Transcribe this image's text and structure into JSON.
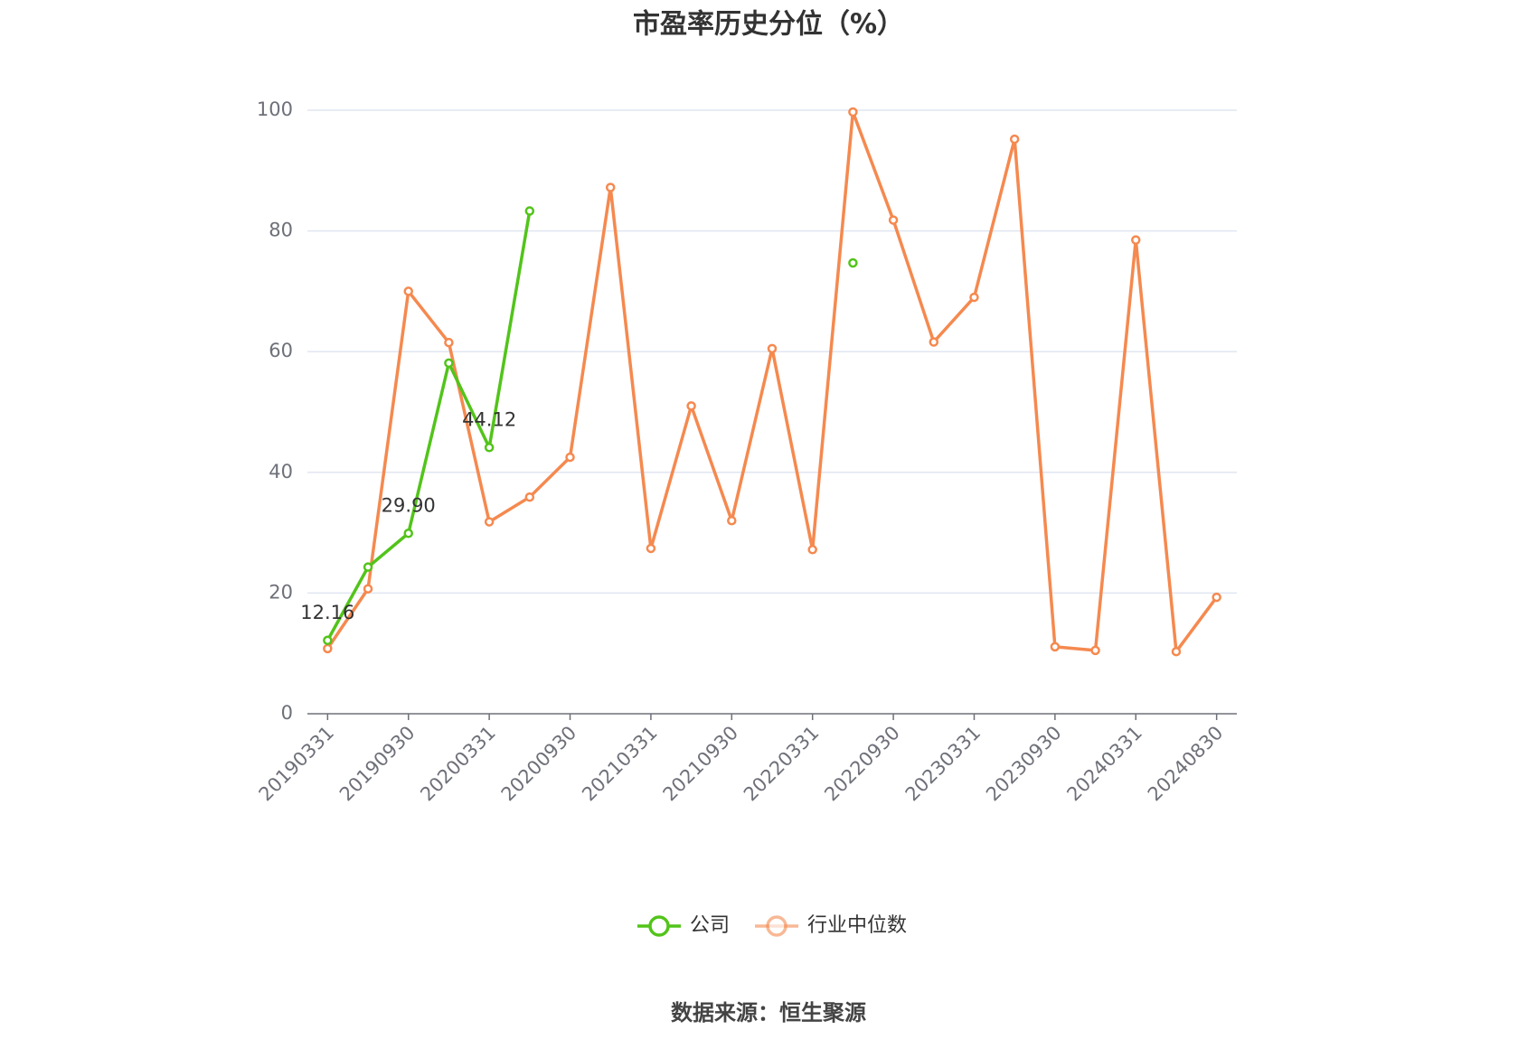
{
  "chart_data": {
    "type": "line",
    "title": "市盈率历史分位（%）",
    "source": "数据来源：恒生聚源",
    "categories": [
      "20190331",
      null,
      "20190930",
      null,
      "20200331",
      null,
      "20200930",
      null,
      "20210331",
      null,
      "20210930",
      null,
      "20220331",
      null,
      "20220930",
      null,
      "20230331",
      null,
      "20230930",
      null,
      "20240331",
      null,
      "20240830"
    ],
    "series": [
      {
        "name": "公司",
        "color": "#52c41a",
        "values": [
          12.16,
          24.3,
          29.9,
          58.1,
          44.12,
          83.3,
          null,
          null,
          null,
          null,
          null,
          null,
          null,
          74.7,
          null,
          null,
          null,
          null,
          null,
          null,
          null,
          null,
          null
        ],
        "value_labels": [
          "12.16",
          null,
          "29.90",
          null,
          "44.12",
          null,
          null,
          null,
          null,
          null,
          null,
          null,
          null,
          null,
          null,
          null,
          null,
          null,
          null,
          null,
          null,
          null,
          null
        ]
      },
      {
        "name": "行业中位数",
        "color": "#f5894f",
        "values": [
          10.8,
          20.7,
          70.0,
          61.5,
          31.8,
          35.9,
          42.5,
          87.2,
          27.4,
          51.0,
          32.0,
          60.5,
          27.2,
          99.7,
          81.8,
          61.6,
          69.0,
          95.2,
          11.1,
          10.5,
          78.5,
          10.3,
          19.3
        ]
      }
    ],
    "ylim": [
      0,
      100
    ],
    "yticks": [
      0,
      20,
      40,
      60,
      80,
      100
    ],
    "grid": true
  }
}
